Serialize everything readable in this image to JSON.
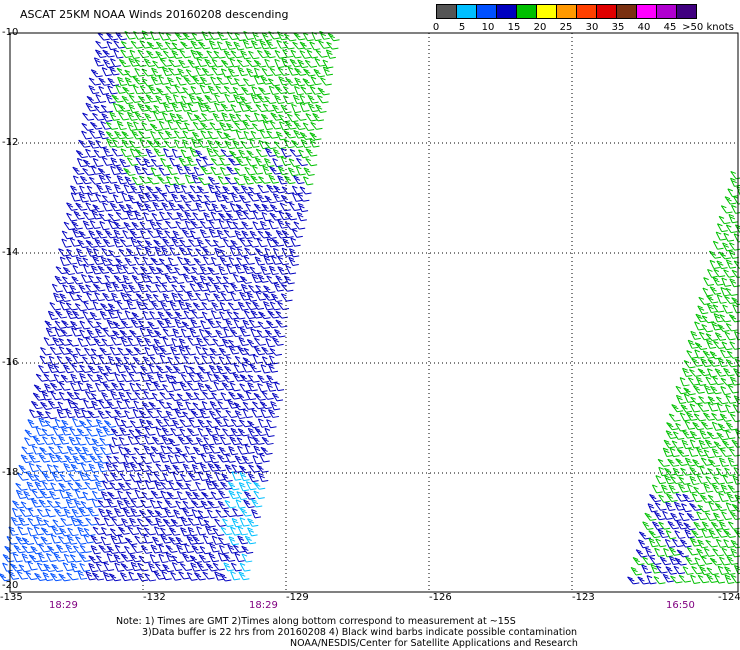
{
  "title": "ASCAT 25KM NOAA Winds 20160208 descending",
  "legend": {
    "colors": [
      "#555555",
      "#00bfff",
      "#0050ff",
      "#0000c0",
      "#00c000",
      "#ffff00",
      "#ff9900",
      "#ff4000",
      "#e00000",
      "#7a3010",
      "#ff00ff",
      "#b000d0",
      "#400080"
    ],
    "labels": [
      "0",
      "5",
      "10",
      "15",
      "20",
      "25",
      "30",
      "35",
      "40",
      "45",
      ">50 knots"
    ]
  },
  "map": {
    "lon_range": [
      -135,
      -124
    ],
    "lat_range": [
      -20,
      -10
    ],
    "lon_ticks": [
      "-135",
      "-132",
      "-129",
      "-126",
      "-123",
      "-124"
    ],
    "lat_ticks": [
      "-10",
      "-12",
      "-14",
      "-16",
      "-18",
      "-20"
    ],
    "pass_times": [
      "18:29",
      "18:29",
      "16:50"
    ]
  },
  "notes": [
    "Note: 1) Times are GMT 2)Times along bottom correspond to measurement at ~15S",
    "3)Data buffer is 22 hrs from 20160208 4) Black wind barbs indicate possible contamination",
    "NOAA/NESDIS/Center for Satellite Applications and Research"
  ]
}
